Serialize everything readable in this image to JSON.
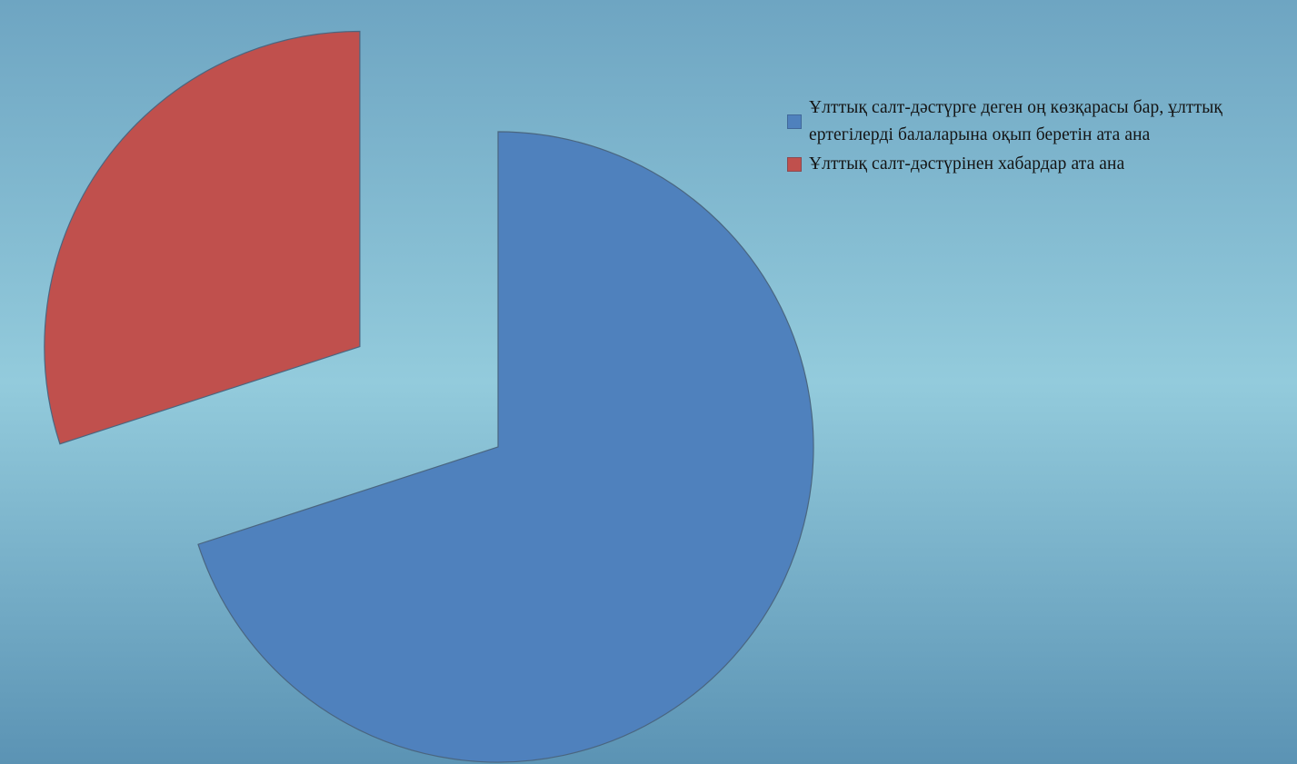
{
  "colors": {
    "background_top": "#6ea5c2",
    "background_mid": "#93cbdc",
    "background_bottom": "#5b93b4",
    "slice_edge": "#4a6680"
  },
  "chart_data": {
    "type": "pie",
    "title": "",
    "exploded": true,
    "slices": [
      {
        "label": "Ұлттық салт-дәстүрге деген оң көзқарасы бар, ұлттық ертегілерді балаларына оқып беретін ата ана",
        "value": 70,
        "color": "#4f81bd"
      },
      {
        "label": "Ұлттық салт-дәстүрінен хабардар ата ана",
        "value": 30,
        "color": "#c0504d"
      }
    ],
    "legend_position": "right"
  }
}
